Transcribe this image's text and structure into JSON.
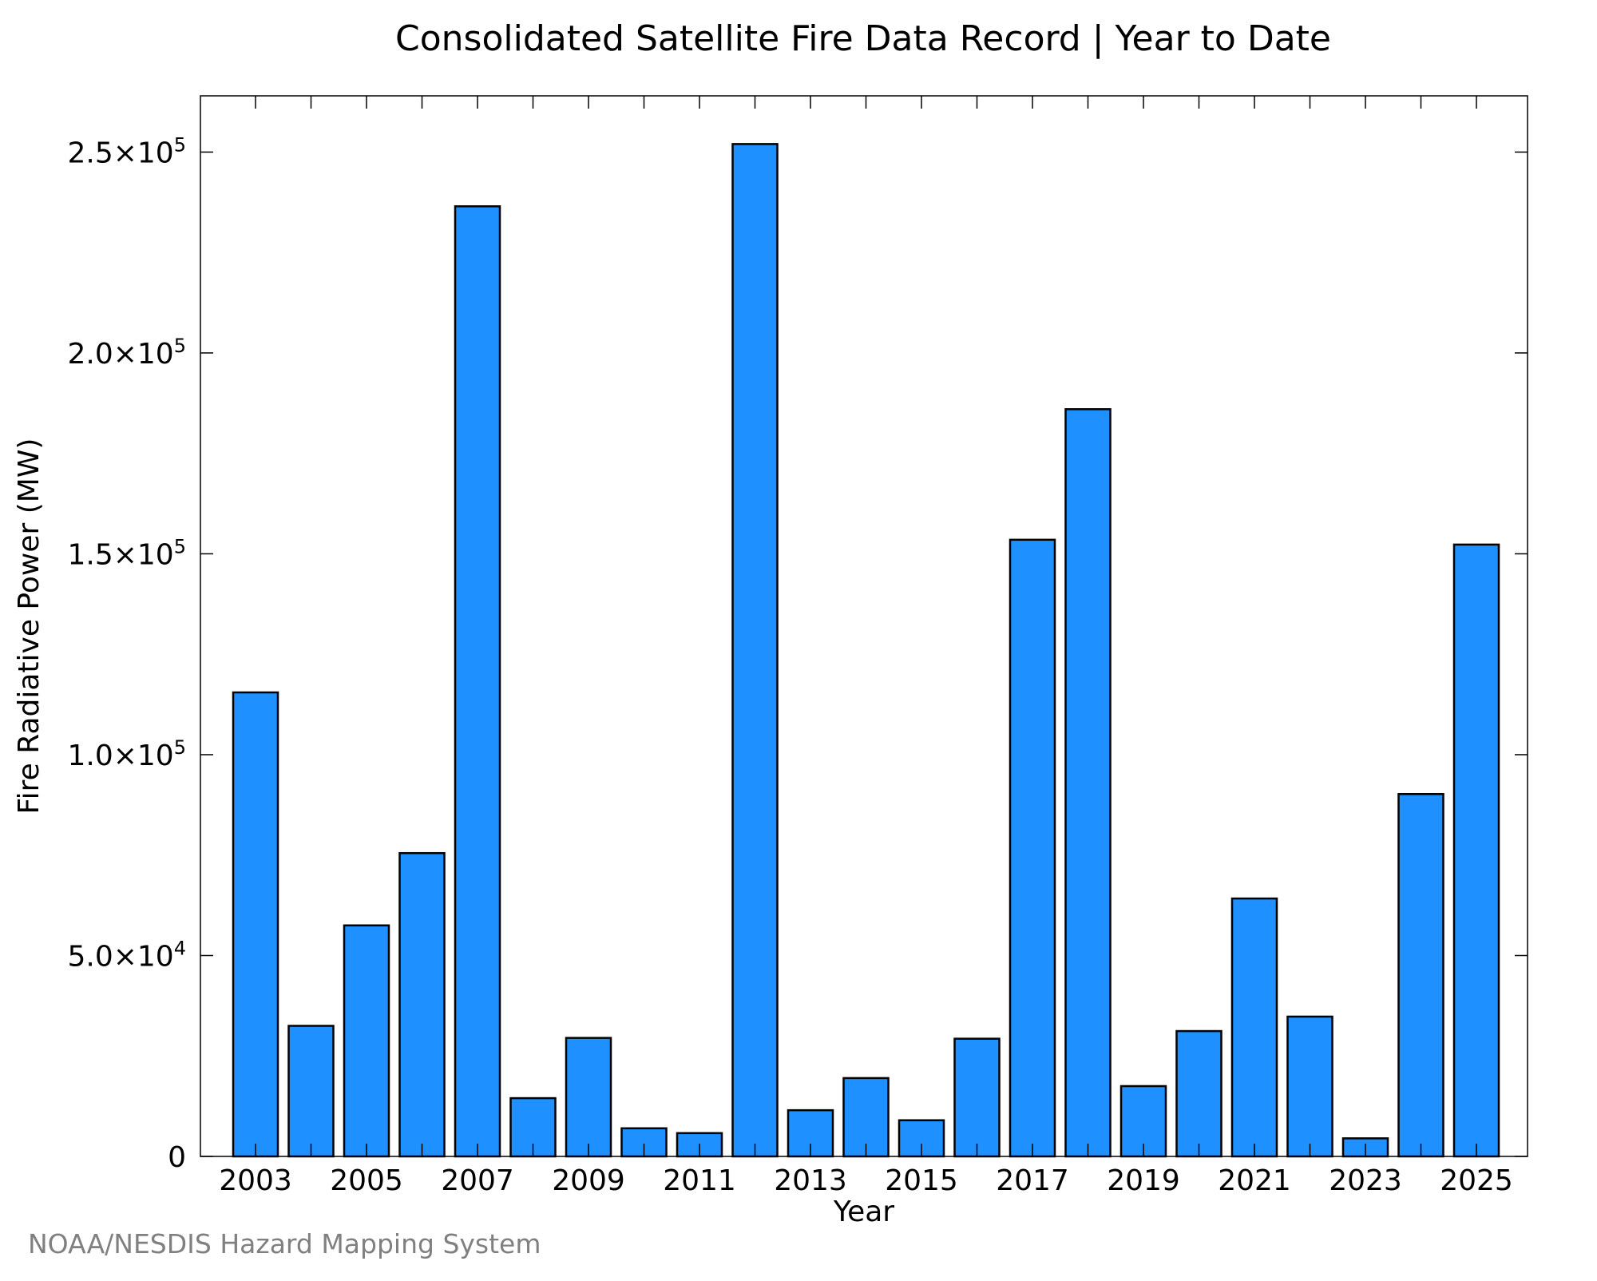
{
  "chart_data": {
    "type": "bar",
    "title": "Consolidated Satellite Fire Data Record | Year to Date",
    "xlabel": "Year",
    "ylabel": "Fire Radiative Power (MW)",
    "categories": [
      "2003",
      "2004",
      "2005",
      "2006",
      "2007",
      "2008",
      "2009",
      "2010",
      "2011",
      "2012",
      "2013",
      "2014",
      "2015",
      "2016",
      "2017",
      "2018",
      "2019",
      "2020",
      "2021",
      "2022",
      "2023",
      "2024",
      "2025"
    ],
    "values": [
      115500,
      32500,
      57500,
      75500,
      236500,
      14500,
      29500,
      7000,
      5800,
      252000,
      11500,
      19500,
      9000,
      29300,
      153500,
      186000,
      17500,
      31200,
      64200,
      34800,
      4500,
      90200,
      152300
    ],
    "xtick_labels": [
      "2003",
      "2005",
      "2007",
      "2009",
      "2011",
      "2013",
      "2015",
      "2017",
      "2019",
      "2021",
      "2023",
      "2025"
    ],
    "ylim": [
      0,
      264000
    ],
    "yticks": [
      {
        "value": 0,
        "mantissa": "0",
        "exponent": ""
      },
      {
        "value": 50000,
        "mantissa": "5.0×10",
        "exponent": "4"
      },
      {
        "value": 100000,
        "mantissa": "1.0×10",
        "exponent": "5"
      },
      {
        "value": 150000,
        "mantissa": "1.5×10",
        "exponent": "5"
      },
      {
        "value": 200000,
        "mantissa": "2.0×10",
        "exponent": "5"
      },
      {
        "value": 250000,
        "mantissa": "2.5×10",
        "exponent": "5"
      }
    ],
    "grid": false,
    "bar_color": "#1e90ff",
    "edge_color": "#000000"
  },
  "credit": "NOAA/NESDIS Hazard Mapping System"
}
